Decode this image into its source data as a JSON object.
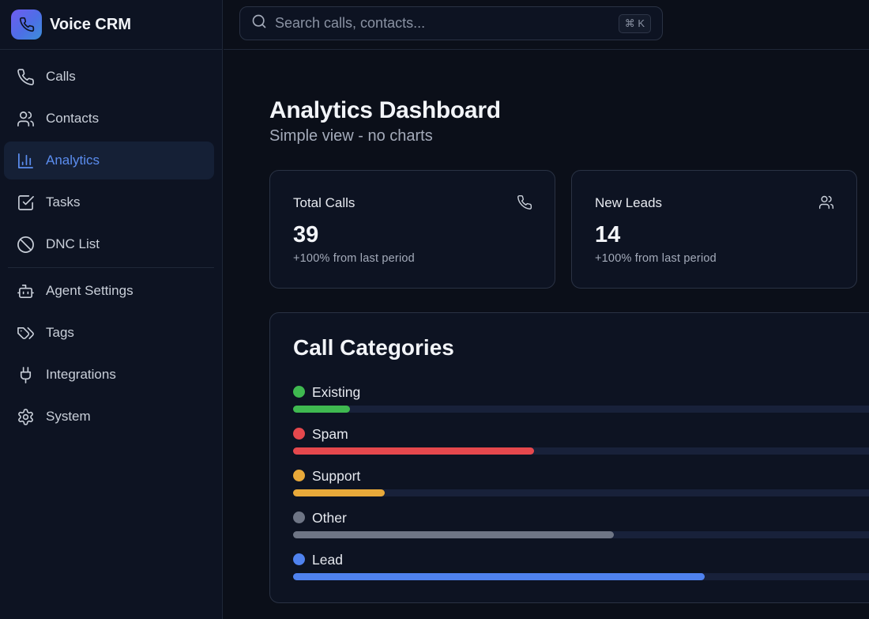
{
  "brand": {
    "name": "Voice CRM"
  },
  "sidebar": {
    "items": [
      {
        "label": "Calls",
        "icon": "phone-icon"
      },
      {
        "label": "Contacts",
        "icon": "users-icon"
      },
      {
        "label": "Analytics",
        "icon": "bar-chart-icon",
        "active": true
      },
      {
        "label": "Tasks",
        "icon": "checkbox-icon"
      },
      {
        "label": "DNC List",
        "icon": "ban-icon"
      }
    ],
    "items2": [
      {
        "label": "Agent Settings",
        "icon": "bot-icon"
      },
      {
        "label": "Tags",
        "icon": "tags-icon"
      },
      {
        "label": "Integrations",
        "icon": "plug-icon"
      },
      {
        "label": "System",
        "icon": "gear-icon"
      }
    ]
  },
  "search": {
    "placeholder": "Search calls, contacts...",
    "shortcut": "⌘ K"
  },
  "page": {
    "title": "Analytics Dashboard",
    "subtitle": "Simple view - no charts"
  },
  "stats": [
    {
      "label": "Total Calls",
      "value": "39",
      "change": "+100% from last period",
      "icon": "phone-icon"
    },
    {
      "label": "New Leads",
      "value": "14",
      "change": "+100% from last period",
      "icon": "users-icon"
    }
  ],
  "categories": {
    "title": "Call Categories",
    "items": [
      {
        "name": "Existing",
        "color": "#3fb950",
        "fraction": 0.0926
      },
      {
        "name": "Spam",
        "color": "#e5484d",
        "fraction": 0.391
      },
      {
        "name": "Support",
        "color": "#e8a93a",
        "fraction": 0.149
      },
      {
        "name": "Other",
        "color": "#6e7585",
        "fraction": 0.521
      },
      {
        "name": "Lead",
        "color": "#4f82ef",
        "fraction": 0.668
      }
    ]
  },
  "colors": {
    "accent": "#5b8def",
    "background": "#0b0f19",
    "panel": "#0d1322",
    "border": "#2a3244"
  }
}
